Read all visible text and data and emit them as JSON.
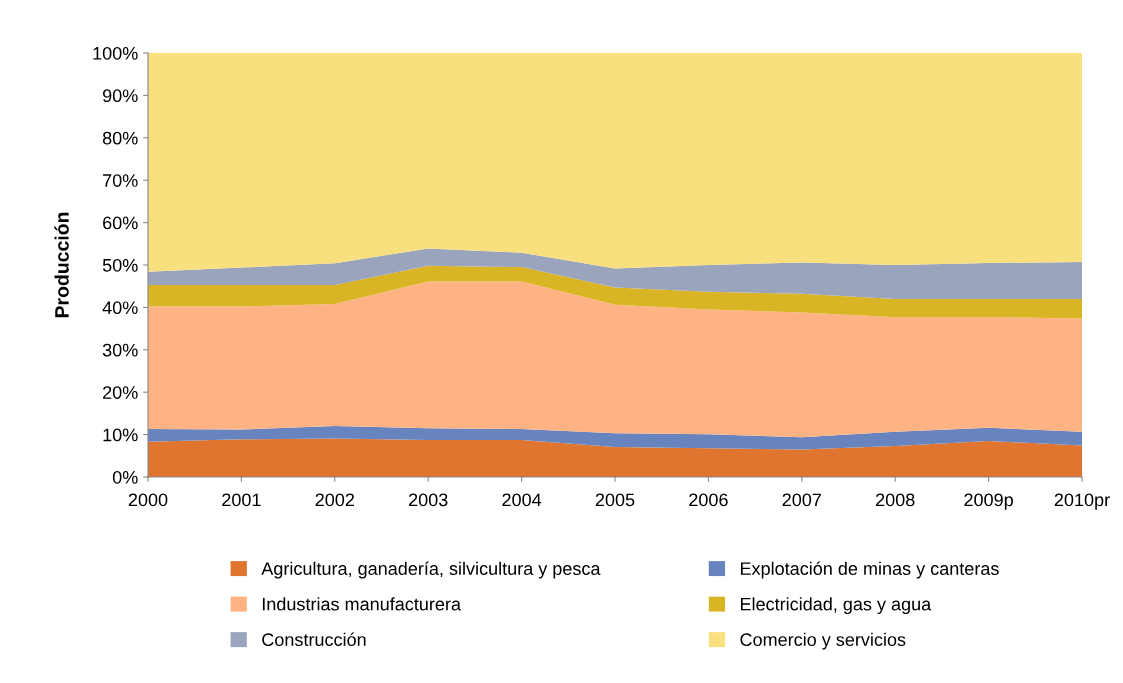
{
  "chart_data": {
    "type": "area",
    "stacked": true,
    "ylabel": "Producción",
    "categories": [
      "2000",
      "2001",
      "2002",
      "2003",
      "2004",
      "2005",
      "2006",
      "2007",
      "2008",
      "2009p",
      "2010pr"
    ],
    "series": [
      {
        "name": "Agricultura, ganadería, silvicultura y pesca",
        "color": "#e07530",
        "values": [
          8.3,
          8.9,
          9.1,
          8.7,
          8.7,
          7.1,
          6.8,
          6.5,
          7.3,
          8.5,
          7.4
        ]
      },
      {
        "name": "Explotación de minas y canteras",
        "color": "#6784bf",
        "values": [
          3.0,
          2.3,
          2.9,
          2.8,
          2.6,
          3.2,
          3.3,
          2.9,
          3.4,
          3.1,
          3.3
        ]
      },
      {
        "name": "Industrias manufacturera",
        "color": "#ffb385",
        "values": [
          28.9,
          29.0,
          28.8,
          34.6,
          34.8,
          30.3,
          29.4,
          29.4,
          27.0,
          26.1,
          26.7
        ]
      },
      {
        "name": "Electricidad, gas y agua",
        "color": "#d9b526",
        "values": [
          5.1,
          5.1,
          4.5,
          3.7,
          3.4,
          4.1,
          4.2,
          4.4,
          4.3,
          4.3,
          4.6
        ]
      },
      {
        "name": "Construcción",
        "color": "#9ba4bd",
        "values": [
          3.1,
          4.1,
          5.1,
          4.1,
          3.4,
          4.5,
          6.3,
          7.4,
          8.0,
          8.5,
          8.7
        ]
      },
      {
        "name": "Comercio y servicios",
        "color": "#f8e07e",
        "values": [
          51.6,
          50.6,
          49.6,
          46.1,
          47.1,
          50.8,
          50.0,
          49.4,
          50.0,
          49.5,
          49.3
        ]
      }
    ],
    "ylim": [
      0,
      100
    ],
    "yticks": [
      {
        "value": 0,
        "label": "0%"
      },
      {
        "value": 10,
        "label": "10%"
      },
      {
        "value": 20,
        "label": "20%"
      },
      {
        "value": 30,
        "label": "30%"
      },
      {
        "value": 40,
        "label": "40%"
      },
      {
        "value": 50,
        "label": "50%"
      },
      {
        "value": 60,
        "label": "60%"
      },
      {
        "value": 70,
        "label": "70%"
      },
      {
        "value": 80,
        "label": "80%"
      },
      {
        "value": 90,
        "label": "90%"
      },
      {
        "value": 100,
        "label": "100%"
      }
    ],
    "grid": false,
    "legend": "bottom"
  }
}
